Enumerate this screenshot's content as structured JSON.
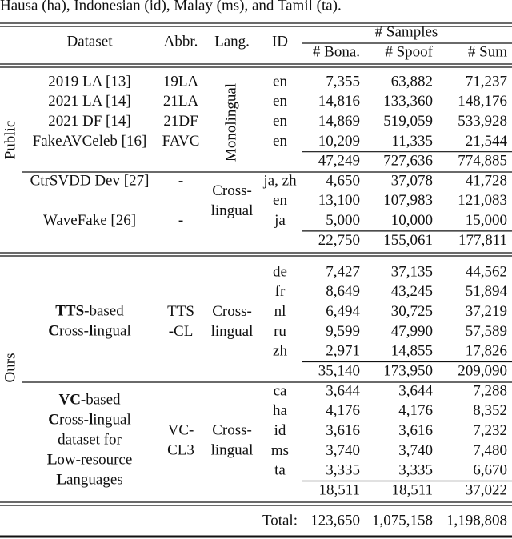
{
  "caption_fragment": "Hausa (ha), Indonesian (id), Malay (ms), and Tamil (ta).",
  "header": {
    "dataset": "Dataset",
    "abbr": "Abbr.",
    "lang": "Lang.",
    "id": "ID",
    "samples": "# Samples",
    "bona": "# Bona.",
    "spoof": "# Spoof",
    "sum": "# Sum"
  },
  "groups": [
    {
      "label": "Public",
      "blocks": [
        {
          "lang": [
            "Monolingual"
          ],
          "rows": [
            {
              "dataset": "2019 LA [13]",
              "abbr": "19LA",
              "id": "en",
              "bona": "7,355",
              "spoof": "63,882",
              "sum": "71,237"
            },
            {
              "dataset": "2021 LA [14]",
              "abbr": "21LA",
              "id": "en",
              "bona": "14,816",
              "spoof": "133,360",
              "sum": "148,176"
            },
            {
              "dataset": "2021 DF [14]",
              "abbr": "21DF",
              "id": "en",
              "bona": "14,869",
              "spoof": "519,059",
              "sum": "533,928"
            },
            {
              "dataset": "FakeAVCeleb [16]",
              "abbr": "FAVC",
              "id": "en",
              "bona": "10,209",
              "spoof": "11,335",
              "sum": "21,544"
            }
          ],
          "subtotal": {
            "bona": "47,249",
            "spoof": "727,636",
            "sum": "774,885"
          }
        },
        {
          "lang": [
            "Cross-",
            "lingual"
          ],
          "rows": [
            {
              "dataset": "CtrSVDD Dev [27]",
              "abbr": "-",
              "id": "ja, zh",
              "bona": "4,650",
              "spoof": "37,078",
              "sum": "41,728"
            },
            {
              "id": "en",
              "bona": "13,100",
              "spoof": "107,983",
              "sum": "121,083"
            },
            {
              "dataset": "WaveFake [26]",
              "abbr": "-",
              "id": "ja",
              "bona": "5,000",
              "spoof": "10,000",
              "sum": "15,000"
            }
          ],
          "subtotal": {
            "bona": "22,750",
            "spoof": "155,061",
            "sum": "177,811"
          }
        }
      ]
    },
    {
      "label": "Ours",
      "blocks": [
        {
          "dataset_lines": [
            [
              {
                "text": "TTS",
                "bold": true
              },
              {
                "text": "-based",
                "bold": false
              }
            ],
            [
              {
                "text": "C",
                "bold": true
              },
              {
                "text": "ross-",
                "bold": false
              },
              {
                "text": "l",
                "bold": true
              },
              {
                "text": "ingual",
                "bold": false
              }
            ]
          ],
          "abbr": [
            "TTS",
            "-CL"
          ],
          "lang": [
            "Cross-",
            "lingual"
          ],
          "rows": [
            {
              "id": "de",
              "bona": "7,427",
              "spoof": "37,135",
              "sum": "44,562"
            },
            {
              "id": "fr",
              "bona": "8,649",
              "spoof": "43,245",
              "sum": "51,894"
            },
            {
              "id": "nl",
              "bona": "6,494",
              "spoof": "30,725",
              "sum": "37,219"
            },
            {
              "id": "ru",
              "bona": "9,599",
              "spoof": "47,990",
              "sum": "57,589"
            },
            {
              "id": "zh",
              "bona": "2,971",
              "spoof": "14,855",
              "sum": "17,826"
            }
          ],
          "subtotal": {
            "bona": "35,140",
            "spoof": "173,950",
            "sum": "209,090"
          }
        },
        {
          "dataset_lines": [
            [
              {
                "text": "VC",
                "bold": true
              },
              {
                "text": "-based",
                "bold": false
              }
            ],
            [
              {
                "text": "C",
                "bold": true
              },
              {
                "text": "ross-",
                "bold": false
              },
              {
                "text": "l",
                "bold": true
              },
              {
                "text": "ingual",
                "bold": false
              }
            ],
            [
              {
                "text": "dataset for",
                "bold": false
              }
            ],
            [
              {
                "text": "L",
                "bold": true
              },
              {
                "text": "ow-resource",
                "bold": false
              }
            ],
            [
              {
                "text": "L",
                "bold": true
              },
              {
                "text": "anguages",
                "bold": false
              }
            ]
          ],
          "abbr": [
            "VC-",
            "CL3"
          ],
          "lang": [
            "Cross-",
            "lingual"
          ],
          "rows": [
            {
              "id": "ca",
              "bona": "3,644",
              "spoof": "3,644",
              "sum": "7,288"
            },
            {
              "id": "ha",
              "bona": "4,176",
              "spoof": "4,176",
              "sum": "8,352"
            },
            {
              "id": "id",
              "bona": "3,616",
              "spoof": "3,616",
              "sum": "7,232"
            },
            {
              "id": "ms",
              "bona": "3,740",
              "spoof": "3,740",
              "sum": "7,480"
            },
            {
              "id": "ta",
              "bona": "3,335",
              "spoof": "3,335",
              "sum": "6,670"
            }
          ],
          "subtotal": {
            "bona": "18,511",
            "spoof": "18,511",
            "sum": "37,022"
          }
        }
      ]
    }
  ],
  "total": {
    "label": "Total:",
    "bona": "123,650",
    "spoof": "1,075,158",
    "sum": "1,198,808"
  }
}
